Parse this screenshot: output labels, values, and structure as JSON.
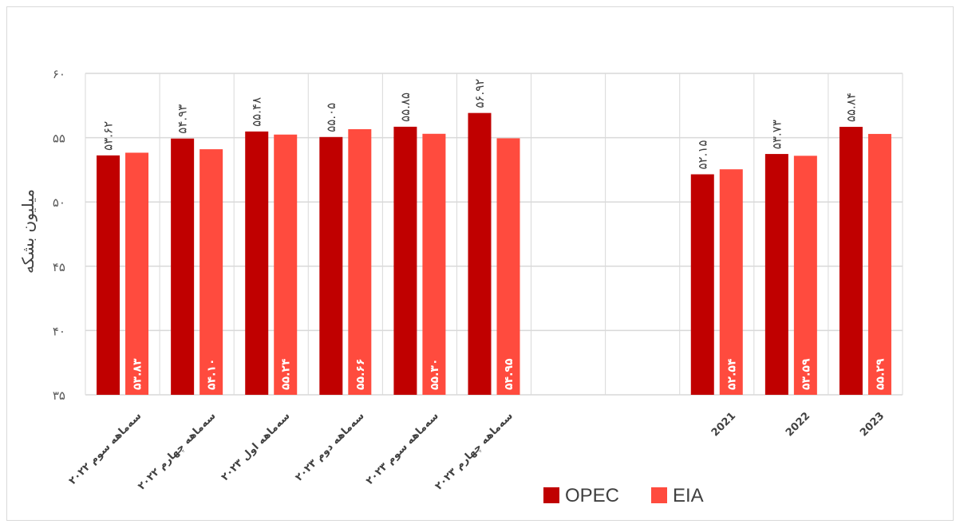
{
  "chart_data": {
    "type": "bar",
    "ylabel": "میلیون بشکه",
    "ylim": [
      35,
      60
    ],
    "yticks": [
      35,
      40,
      45,
      50,
      55,
      60
    ],
    "ytick_labels": [
      "۳۵",
      "۴۰",
      "۴۵",
      "۵۰",
      "۵۵",
      "۶۰"
    ],
    "grid": true,
    "legend_position": "bottom-right",
    "categories": [
      "سه‌ماهه سوم ۲۰۲۲",
      "سه‌ماهه چهارم ۲۰۲۲",
      "سه‌ماهه اول ۲۰۲۳",
      "سه‌ماهه دوم ۲۰۲۳",
      "سه‌ماهه سوم ۲۰۲۳",
      "سه‌ماهه چهارم ۲۰۲۳",
      "",
      "",
      "2021",
      "2022",
      "2023"
    ],
    "series": [
      {
        "name": "OPEC",
        "color": "#c00000",
        "values": [
          53.62,
          54.93,
          55.48,
          55.05,
          55.85,
          56.92,
          null,
          null,
          52.15,
          53.73,
          55.84
        ],
        "labels": [
          "۵۳.۶۲",
          "۵۴.۹۳",
          "۵۵.۴۸",
          "۵۵.۰۵",
          "۵۵.۸۵",
          "۵۶.۹۲",
          "",
          "",
          "۵۲.۱۵",
          "۵۳.۷۳",
          "۵۵.۸۴"
        ]
      },
      {
        "name": "EIA",
        "color": "#ff4b3e",
        "values": [
          53.83,
          54.1,
          55.24,
          55.66,
          55.3,
          54.95,
          null,
          null,
          52.54,
          53.59,
          55.29
        ],
        "labels": [
          "۵۳.۸۳",
          "۵۴.۱۰",
          "۵۵.۲۴",
          "۵۵.۶۶",
          "۵۵.۳۰",
          "۵۴.۹۵",
          "",
          "",
          "۵۲.۵۴",
          "۵۳.۵۹",
          "۵۵.۲۹"
        ]
      }
    ]
  }
}
